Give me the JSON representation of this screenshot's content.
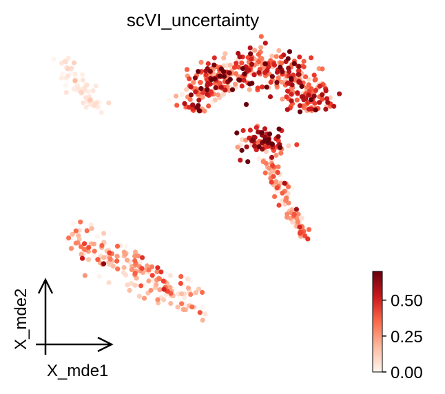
{
  "chart_data": {
    "type": "scatter",
    "title": "scVI_uncertainty",
    "xlabel": "X_mde1",
    "ylabel": "X_mde2",
    "xlim": [
      0,
      1
    ],
    "ylim": [
      0,
      1
    ],
    "grid": false,
    "colormap": "Reds",
    "colorbar": {
      "label": "",
      "range": [
        0.0,
        0.7
      ],
      "ticks": [
        0.0,
        0.25,
        0.5
      ],
      "tick_labels": [
        "0.00",
        "0.25",
        "0.50"
      ],
      "placement": "right"
    },
    "clusters": [
      {
        "region": "upper-left",
        "center": [
          0.13,
          0.87
        ],
        "spread": [
          0.05,
          0.08
        ],
        "count": 60,
        "value_mean": 0.05,
        "value_sd": 0.05,
        "shape": "strand"
      },
      {
        "region": "top-right arc",
        "center": [
          0.68,
          0.88
        ],
        "spread": [
          0.2,
          0.09
        ],
        "count": 420,
        "value_mean": 0.38,
        "value_sd": 0.2,
        "shape": "arc"
      },
      {
        "region": "center-right",
        "center": [
          0.71,
          0.68
        ],
        "spread": [
          0.06,
          0.05
        ],
        "count": 90,
        "value_mean": 0.45,
        "value_sd": 0.2,
        "shape": "blob"
      },
      {
        "region": "right stem",
        "center": [
          0.76,
          0.5
        ],
        "spread": [
          0.05,
          0.15
        ],
        "count": 90,
        "value_mean": 0.25,
        "value_sd": 0.15,
        "shape": "stem"
      },
      {
        "region": "bottom-left",
        "center": [
          0.3,
          0.32
        ],
        "spread": [
          0.2,
          0.1
        ],
        "count": 190,
        "value_mean": 0.18,
        "value_sd": 0.15,
        "shape": "band"
      }
    ]
  },
  "colors": {
    "low": "#fff5f0",
    "mid": "#fc9272",
    "high": "#67000d",
    "axis": "#000000"
  }
}
